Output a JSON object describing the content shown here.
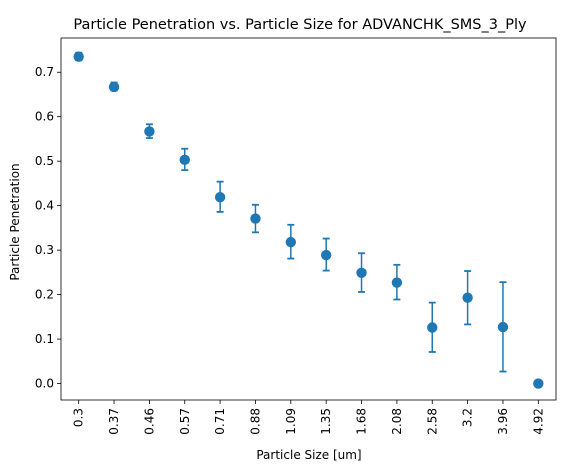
{
  "chart_data": {
    "type": "scatter",
    "title": "Particle Penetration vs. Particle Size for ADVANCHK_SMS_3_Ply",
    "xlabel": "Particle Size [um]",
    "ylabel": "Particle Penetration",
    "categories": [
      "0.3",
      "0.37",
      "0.46",
      "0.57",
      "0.71",
      "0.88",
      "1.09",
      "1.35",
      "1.68",
      "2.08",
      "2.58",
      "3.2",
      "3.96",
      "4.92"
    ],
    "values": [
      0.735,
      0.667,
      0.567,
      0.503,
      0.419,
      0.371,
      0.318,
      0.289,
      0.249,
      0.227,
      0.126,
      0.193,
      0.127,
      0.0
    ],
    "error_low": [
      0.727,
      0.659,
      0.552,
      0.48,
      0.386,
      0.34,
      0.281,
      0.254,
      0.206,
      0.189,
      0.071,
      0.133,
      0.027,
      0.0
    ],
    "error_high": [
      0.744,
      0.677,
      0.583,
      0.528,
      0.454,
      0.402,
      0.357,
      0.326,
      0.293,
      0.267,
      0.182,
      0.253,
      0.228,
      0.0
    ],
    "yticks": [
      0.0,
      0.1,
      0.2,
      0.3,
      0.4,
      0.5,
      0.6,
      0.7
    ],
    "ytick_labels": [
      "0.0",
      "0.1",
      "0.2",
      "0.3",
      "0.4",
      "0.5",
      "0.6",
      "0.7"
    ],
    "ylim": [
      -0.037,
      0.777
    ],
    "grid": false,
    "legend": "none",
    "color": "#1f77b4"
  }
}
